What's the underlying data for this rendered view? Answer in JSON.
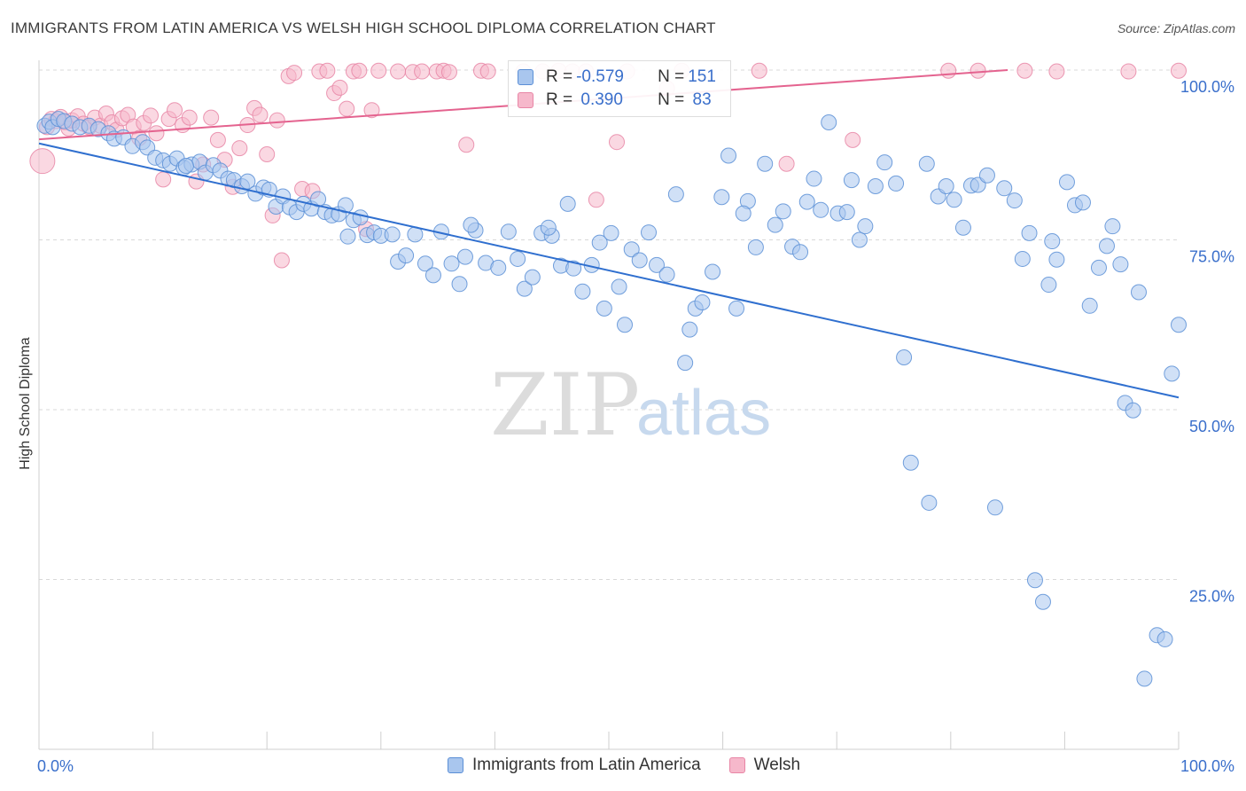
{
  "title": "IMMIGRANTS FROM LATIN AMERICA VS WELSH HIGH SCHOOL DIPLOMA CORRELATION CHART",
  "source": "Source: ZipAtlas.com",
  "watermark": {
    "zip": "ZIP",
    "atlas": "atlas"
  },
  "colors": {
    "blue_fill": "#a9c6ee",
    "blue_stroke": "#5b8fd6",
    "blue_line": "#2f6fcf",
    "pink_fill": "#f6b8cb",
    "pink_stroke": "#e886a6",
    "pink_line": "#e4638f",
    "grid": "#d9d9d9",
    "axis_text": "#3a6fcb"
  },
  "legend": {
    "rows": [
      {
        "r_label": "R = ",
        "r_value": "-0.579",
        "n_label": "N = ",
        "n_value": "151"
      },
      {
        "r_label": "R = ",
        "r_value": " 0.390",
        "n_label": "N = ",
        "n_value": " 83"
      }
    ]
  },
  "bottom_legend": {
    "blue": "Immigrants from Latin America",
    "pink": "Welsh"
  },
  "chart_data": {
    "type": "scatter",
    "title": "IMMIGRANTS FROM LATIN AMERICA VS WELSH HIGH SCHOOL DIPLOMA CORRELATION CHART",
    "xlabel": "",
    "ylabel": "High School Diploma",
    "xlim": [
      0,
      100
    ],
    "ylim": [
      0,
      100
    ],
    "x_tick_labels": {
      "left": "0.0%",
      "right": "100.0%"
    },
    "y_tick_labels": [
      "100.0%",
      "75.0%",
      "50.0%",
      "25.0%"
    ],
    "y_ticks": [
      100,
      75,
      50,
      25
    ],
    "x_minor_ticks": [
      0,
      10,
      20,
      30,
      40,
      50,
      60,
      70,
      80,
      90,
      100
    ],
    "series": [
      {
        "name": "Immigrants from Latin America",
        "color": "blue",
        "R": -0.579,
        "N": 151,
        "trend": {
          "x0": 0,
          "y0": 89.2,
          "x1": 100,
          "y1": 51.8
        },
        "points": [
          [
            0.5,
            91.8
          ],
          [
            0.9,
            92.4
          ],
          [
            1.2,
            91.6
          ],
          [
            1.7,
            92.8
          ],
          [
            2.2,
            92.5
          ],
          [
            2.9,
            92.1
          ],
          [
            3.6,
            91.6
          ],
          [
            4.4,
            91.8
          ],
          [
            5.2,
            91.3
          ],
          [
            6.1,
            90.7
          ],
          [
            6.6,
            89.9
          ],
          [
            7.4,
            90.1
          ],
          [
            8.2,
            88.8
          ],
          [
            9.1,
            89.4
          ],
          [
            9.5,
            88.6
          ],
          [
            10.2,
            87.1
          ],
          [
            10.9,
            86.7
          ],
          [
            11.5,
            86.2
          ],
          [
            12.1,
            87.0
          ],
          [
            12.7,
            85.6
          ],
          [
            13.4,
            86.1
          ],
          [
            14.1,
            86.5
          ],
          [
            14.6,
            84.9
          ],
          [
            15.3,
            86.0
          ],
          [
            15.9,
            85.2
          ],
          [
            16.6,
            84.0
          ],
          [
            17.1,
            83.8
          ],
          [
            17.8,
            82.9
          ],
          [
            18.3,
            83.6
          ],
          [
            19.0,
            81.8
          ],
          [
            19.7,
            82.7
          ],
          [
            20.2,
            82.4
          ],
          [
            20.8,
            79.9
          ],
          [
            21.4,
            81.4
          ],
          [
            22.0,
            79.8
          ],
          [
            22.6,
            79.1
          ],
          [
            23.2,
            80.3
          ],
          [
            23.9,
            79.6
          ],
          [
            24.5,
            81.0
          ],
          [
            25.1,
            79.1
          ],
          [
            25.7,
            78.6
          ],
          [
            26.3,
            78.8
          ],
          [
            26.9,
            80.1
          ],
          [
            27.6,
            77.9
          ],
          [
            28.2,
            78.3
          ],
          [
            28.8,
            75.7
          ],
          [
            29.4,
            76.1
          ],
          [
            30.0,
            75.6
          ],
          [
            31.0,
            75.8
          ],
          [
            31.5,
            71.8
          ],
          [
            32.2,
            72.7
          ],
          [
            33.0,
            75.8
          ],
          [
            33.9,
            71.5
          ],
          [
            34.6,
            69.8
          ],
          [
            35.3,
            76.2
          ],
          [
            36.2,
            71.5
          ],
          [
            36.9,
            68.5
          ],
          [
            37.4,
            72.5
          ],
          [
            38.3,
            76.4
          ],
          [
            39.2,
            71.6
          ],
          [
            40.3,
            70.9
          ],
          [
            41.2,
            76.2
          ],
          [
            42.0,
            72.2
          ],
          [
            42.6,
            67.8
          ],
          [
            43.3,
            69.5
          ],
          [
            44.1,
            76.0
          ],
          [
            45.0,
            75.6
          ],
          [
            45.8,
            71.2
          ],
          [
            46.4,
            80.3
          ],
          [
            46.9,
            70.8
          ],
          [
            47.7,
            67.4
          ],
          [
            48.5,
            71.3
          ],
          [
            49.2,
            74.6
          ],
          [
            49.6,
            64.9
          ],
          [
            50.2,
            76.0
          ],
          [
            50.9,
            68.1
          ],
          [
            51.4,
            62.5
          ],
          [
            52.0,
            73.6
          ],
          [
            52.7,
            72.0
          ],
          [
            53.5,
            76.1
          ],
          [
            54.2,
            71.3
          ],
          [
            55.1,
            69.9
          ],
          [
            55.9,
            81.7
          ],
          [
            56.7,
            56.9
          ],
          [
            57.1,
            61.8
          ],
          [
            57.6,
            64.9
          ],
          [
            58.2,
            65.8
          ],
          [
            59.1,
            70.3
          ],
          [
            59.9,
            81.3
          ],
          [
            60.5,
            87.4
          ],
          [
            61.2,
            64.9
          ],
          [
            62.2,
            80.7
          ],
          [
            62.9,
            73.9
          ],
          [
            63.7,
            86.2
          ],
          [
            64.6,
            77.2
          ],
          [
            65.3,
            79.2
          ],
          [
            66.1,
            74.0
          ],
          [
            66.8,
            73.2
          ],
          [
            67.4,
            80.6
          ],
          [
            68.0,
            84.0
          ],
          [
            68.6,
            79.4
          ],
          [
            69.3,
            92.3
          ],
          [
            70.1,
            78.9
          ],
          [
            70.9,
            79.1
          ],
          [
            72.0,
            75.0
          ],
          [
            72.5,
            77.0
          ],
          [
            73.4,
            82.9
          ],
          [
            74.2,
            86.4
          ],
          [
            75.2,
            83.3
          ],
          [
            75.9,
            57.7
          ],
          [
            76.5,
            42.2
          ],
          [
            77.9,
            86.2
          ],
          [
            78.1,
            36.3
          ],
          [
            78.9,
            81.4
          ],
          [
            79.6,
            82.9
          ],
          [
            80.3,
            80.9
          ],
          [
            81.1,
            76.8
          ],
          [
            81.8,
            83.0
          ],
          [
            82.4,
            83.1
          ],
          [
            83.2,
            84.5
          ],
          [
            83.9,
            35.6
          ],
          [
            84.7,
            82.6
          ],
          [
            85.6,
            80.8
          ],
          [
            86.3,
            72.2
          ],
          [
            86.9,
            76.0
          ],
          [
            87.4,
            24.9
          ],
          [
            88.1,
            21.7
          ],
          [
            88.6,
            68.4
          ],
          [
            89.3,
            72.1
          ],
          [
            90.2,
            83.5
          ],
          [
            90.9,
            80.1
          ],
          [
            91.6,
            80.5
          ],
          [
            92.2,
            65.3
          ],
          [
            93.0,
            70.9
          ],
          [
            93.7,
            74.1
          ],
          [
            94.2,
            77.0
          ],
          [
            94.9,
            71.4
          ],
          [
            95.3,
            51.0
          ],
          [
            96.0,
            49.9
          ],
          [
            96.5,
            67.3
          ],
          [
            97.0,
            10.4
          ],
          [
            98.1,
            16.8
          ],
          [
            98.8,
            16.2
          ],
          [
            99.4,
            55.3
          ],
          [
            100.0,
            62.5
          ],
          [
            12.9,
            85.9
          ],
          [
            27.1,
            75.5
          ],
          [
            37.9,
            77.2
          ],
          [
            44.7,
            76.8
          ],
          [
            61.8,
            78.9
          ],
          [
            71.3,
            83.8
          ],
          [
            88.9,
            74.8
          ]
        ]
      },
      {
        "name": "Welsh",
        "color": "pink",
        "R": 0.39,
        "N": 83,
        "trend": {
          "x0": 0,
          "y0": 89.8,
          "x1": 100,
          "y1": 101.8
        },
        "points": [
          [
            0.3,
            86.6
          ],
          [
            0.7,
            91.6
          ],
          [
            1.1,
            92.8
          ],
          [
            1.5,
            92.5
          ],
          [
            1.9,
            93.1
          ],
          [
            2.3,
            92.3
          ],
          [
            2.6,
            91.4
          ],
          [
            2.9,
            92.6
          ],
          [
            3.4,
            93.2
          ],
          [
            3.9,
            92.1
          ],
          [
            4.4,
            91.6
          ],
          [
            4.9,
            93.0
          ],
          [
            5.4,
            91.8
          ],
          [
            5.9,
            93.6
          ],
          [
            6.4,
            92.3
          ],
          [
            6.8,
            91.2
          ],
          [
            7.3,
            92.9
          ],
          [
            7.8,
            93.4
          ],
          [
            8.3,
            91.7
          ],
          [
            8.8,
            90.0
          ],
          [
            9.2,
            92.2
          ],
          [
            9.8,
            93.3
          ],
          [
            10.3,
            90.7
          ],
          [
            10.9,
            83.9
          ],
          [
            11.4,
            92.8
          ],
          [
            11.9,
            94.1
          ],
          [
            12.6,
            91.9
          ],
          [
            13.2,
            93.0
          ],
          [
            13.8,
            83.6
          ],
          [
            14.4,
            86.1
          ],
          [
            15.1,
            93.0
          ],
          [
            15.7,
            89.7
          ],
          [
            16.3,
            86.8
          ],
          [
            17.0,
            82.8
          ],
          [
            17.6,
            88.5
          ],
          [
            18.3,
            91.9
          ],
          [
            18.9,
            94.4
          ],
          [
            19.4,
            93.4
          ],
          [
            20.0,
            87.6
          ],
          [
            20.5,
            78.6
          ],
          [
            20.9,
            92.6
          ],
          [
            21.3,
            72.0
          ],
          [
            21.9,
            99.1
          ],
          [
            22.4,
            99.6
          ],
          [
            23.1,
            82.5
          ],
          [
            24.0,
            82.2
          ],
          [
            24.6,
            99.8
          ],
          [
            25.3,
            99.9
          ],
          [
            25.9,
            96.6
          ],
          [
            26.4,
            97.4
          ],
          [
            27.0,
            94.3
          ],
          [
            27.6,
            99.8
          ],
          [
            28.1,
            99.9
          ],
          [
            28.7,
            76.6
          ],
          [
            29.2,
            94.1
          ],
          [
            29.8,
            99.9
          ],
          [
            31.5,
            99.8
          ],
          [
            32.8,
            99.7
          ],
          [
            33.6,
            99.8
          ],
          [
            34.9,
            99.8
          ],
          [
            35.5,
            99.9
          ],
          [
            36.0,
            99.7
          ],
          [
            37.5,
            89.0
          ],
          [
            38.8,
            99.9
          ],
          [
            39.4,
            99.8
          ],
          [
            42.5,
            99.8
          ],
          [
            44.2,
            99.8
          ],
          [
            45.6,
            99.9
          ],
          [
            46.8,
            99.8
          ],
          [
            48.0,
            99.8
          ],
          [
            48.9,
            80.9
          ],
          [
            50.7,
            89.4
          ],
          [
            51.6,
            99.8
          ],
          [
            55.1,
            97.3
          ],
          [
            56.4,
            99.9
          ],
          [
            63.2,
            99.9
          ],
          [
            65.6,
            86.2
          ],
          [
            71.4,
            89.7
          ],
          [
            79.8,
            99.9
          ],
          [
            82.4,
            99.9
          ],
          [
            86.5,
            99.9
          ],
          [
            89.3,
            99.8
          ],
          [
            95.6,
            99.8
          ],
          [
            100.0,
            99.9
          ]
        ]
      }
    ]
  }
}
